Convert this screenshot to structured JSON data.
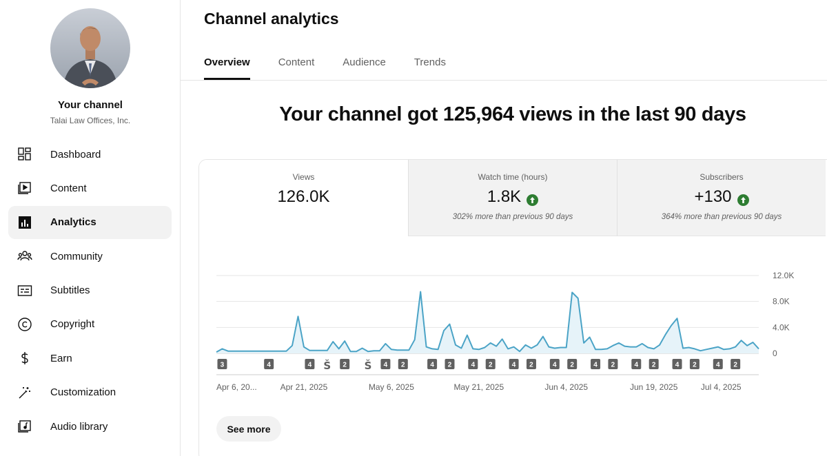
{
  "sidebar": {
    "channel_name": "Your channel",
    "channel_subtitle": "Talai Law Offices, Inc.",
    "items": [
      {
        "label": "Dashboard",
        "icon": "dashboard-icon",
        "active": false
      },
      {
        "label": "Content",
        "icon": "content-icon",
        "active": false
      },
      {
        "label": "Analytics",
        "icon": "analytics-icon",
        "active": true
      },
      {
        "label": "Community",
        "icon": "community-icon",
        "active": false
      },
      {
        "label": "Subtitles",
        "icon": "subtitles-icon",
        "active": false
      },
      {
        "label": "Copyright",
        "icon": "copyright-icon",
        "active": false
      },
      {
        "label": "Earn",
        "icon": "earn-icon",
        "active": false
      },
      {
        "label": "Customization",
        "icon": "customization-icon",
        "active": false
      },
      {
        "label": "Audio library",
        "icon": "audio-library-icon",
        "active": false
      }
    ]
  },
  "page": {
    "title": "Channel analytics",
    "tabs": [
      "Overview",
      "Content",
      "Audience",
      "Trends"
    ],
    "active_tab": "Overview",
    "headline": "Your channel got 125,964 views in the last 90 days",
    "see_more": "See more"
  },
  "metrics": [
    {
      "label": "Views",
      "value": "126.0K",
      "note": "",
      "up": false
    },
    {
      "label": "Watch time (hours)",
      "value": "1.8K",
      "note": "302% more than previous 90 days",
      "up": true
    },
    {
      "label": "Subscribers",
      "value": "+130",
      "note": "364% more than previous 90 days",
      "up": true
    }
  ],
  "colors": {
    "line": "#4aa3c6",
    "fill": "#e6f3f9",
    "up_badge": "#2e7d32",
    "marker": "#606060"
  },
  "chart_data": {
    "type": "area",
    "series": [
      {
        "values": [
          200,
          700,
          350,
          350,
          350,
          350,
          350,
          350,
          350,
          350,
          350,
          350,
          350,
          1200,
          5700,
          1000,
          450,
          450,
          450,
          450,
          1800,
          700,
          1900,
          300,
          300,
          800,
          300,
          400,
          400,
          1500,
          600,
          500,
          500,
          500,
          2100,
          9500,
          1000,
          700,
          600,
          3500,
          4500,
          1300,
          800,
          2800,
          700,
          600,
          900,
          1600,
          1100,
          2200,
          700,
          1000,
          300,
          1300,
          800,
          1300,
          2600,
          1000,
          800,
          900,
          900,
          9400,
          8500,
          1600,
          2500,
          600,
          600,
          700,
          1200,
          1600,
          1100,
          1000,
          1000,
          1500,
          900,
          700,
          1300,
          2900,
          4300,
          5400,
          800,
          900,
          700,
          400,
          600,
          800,
          1000,
          600,
          700,
          1000,
          2000,
          1200,
          1700,
          700
        ]
      }
    ],
    "y_ticks": [
      "12.0K",
      "8.0K",
      "4.0K",
      "0"
    ],
    "y_tick_values": [
      12000,
      8000,
      4000,
      0
    ],
    "ylim": [
      0,
      12000
    ],
    "x_tick_labels": [
      "Apr 6, 20...",
      "Apr 21, 2025",
      "May 6, 2025",
      "May 21, 2025",
      "Jun 4, 2025",
      "Jun 19, 2025",
      "Jul 4, 2025"
    ],
    "x_tick_index": [
      0,
      15,
      30,
      45,
      60,
      75,
      90
    ],
    "markers": [
      {
        "i": 1,
        "label": "3",
        "kind": "count"
      },
      {
        "i": 9,
        "label": "4",
        "kind": "count"
      },
      {
        "i": 16,
        "label": "4",
        "kind": "count"
      },
      {
        "i": 19,
        "label": "",
        "kind": "short"
      },
      {
        "i": 22,
        "label": "2",
        "kind": "count"
      },
      {
        "i": 26,
        "label": "",
        "kind": "short"
      },
      {
        "i": 29,
        "label": "4",
        "kind": "count"
      },
      {
        "i": 32,
        "label": "2",
        "kind": "count"
      },
      {
        "i": 37,
        "label": "4",
        "kind": "count"
      },
      {
        "i": 40,
        "label": "2",
        "kind": "count"
      },
      {
        "i": 44,
        "label": "4",
        "kind": "count"
      },
      {
        "i": 47,
        "label": "2",
        "kind": "count"
      },
      {
        "i": 51,
        "label": "4",
        "kind": "count"
      },
      {
        "i": 54,
        "label": "2",
        "kind": "count"
      },
      {
        "i": 58,
        "label": "4",
        "kind": "count"
      },
      {
        "i": 61,
        "label": "2",
        "kind": "count"
      },
      {
        "i": 65,
        "label": "4",
        "kind": "count"
      },
      {
        "i": 68,
        "label": "2",
        "kind": "count"
      },
      {
        "i": 72,
        "label": "4",
        "kind": "count"
      },
      {
        "i": 75,
        "label": "2",
        "kind": "count"
      },
      {
        "i": 79,
        "label": "4",
        "kind": "count"
      },
      {
        "i": 82,
        "label": "2",
        "kind": "count"
      },
      {
        "i": 86,
        "label": "4",
        "kind": "count"
      },
      {
        "i": 89,
        "label": "2",
        "kind": "count"
      }
    ],
    "grid": true
  }
}
